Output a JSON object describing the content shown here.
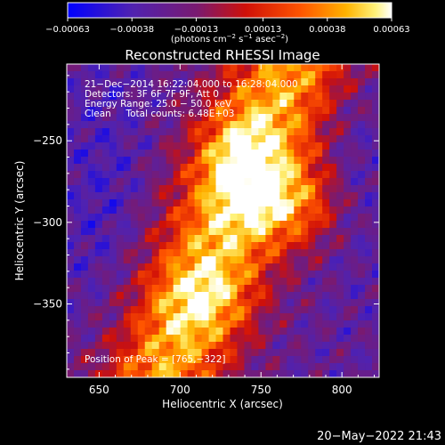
{
  "chart_data": {
    "type": "heatmap",
    "title": "Reconstructed RHESSI Image",
    "xlabel": "Heliocentric X (arcsec)",
    "ylabel": "Heliocentric Y (arcsec)",
    "xlim": [
      630,
      823
    ],
    "ylim": [
      -395,
      -203
    ],
    "x_ticks": [
      650,
      700,
      750,
      800
    ],
    "y_ticks": [
      -250,
      -300,
      -350
    ],
    "x_tick_labels": [
      "650",
      "700",
      "750",
      "800"
    ],
    "y_tick_labels": [
      "−250",
      "−300",
      "−350"
    ],
    "colorbar": {
      "colormap": "blue-purple-red-orange-yellow-white",
      "range": [
        -0.00063,
        0.00063
      ],
      "ticks": [
        -0.00063,
        -0.00038,
        -0.00013,
        0.00013,
        0.00038,
        0.00063
      ],
      "tick_labels": [
        "−0.00063",
        "−0.00038",
        "−0.00013",
        "0.00013",
        "0.00038",
        "0.00063"
      ],
      "unit_prefix": "(photons cm",
      "unit_sup1": "−2",
      "unit_mid1": " s",
      "unit_sup2": "−1",
      "unit_mid2": " asec",
      "unit_sup3": "−2",
      "unit_suffix": ")"
    },
    "annotations": [
      "21−Dec−2014 16:22:04.000 to 16:28:04.000",
      "Detectors: 3F 6F 7F 9F, Att 0",
      "Energy Range: 25.0 − 50.0 keV",
      "Clean     Total counts: 6.48E+03"
    ],
    "peak_label": "Position of Peak = [765,−322]",
    "peak": [
      765,
      -322
    ],
    "timestamp": "20−May−2022 21:43"
  },
  "colors": {
    "background": "#000000",
    "foreground": "#ffffff",
    "blue": "#1010ff",
    "purple": "#5a2aa8",
    "red": "#d01808",
    "orange": "#ff8800",
    "yellow": "#ffee30"
  }
}
